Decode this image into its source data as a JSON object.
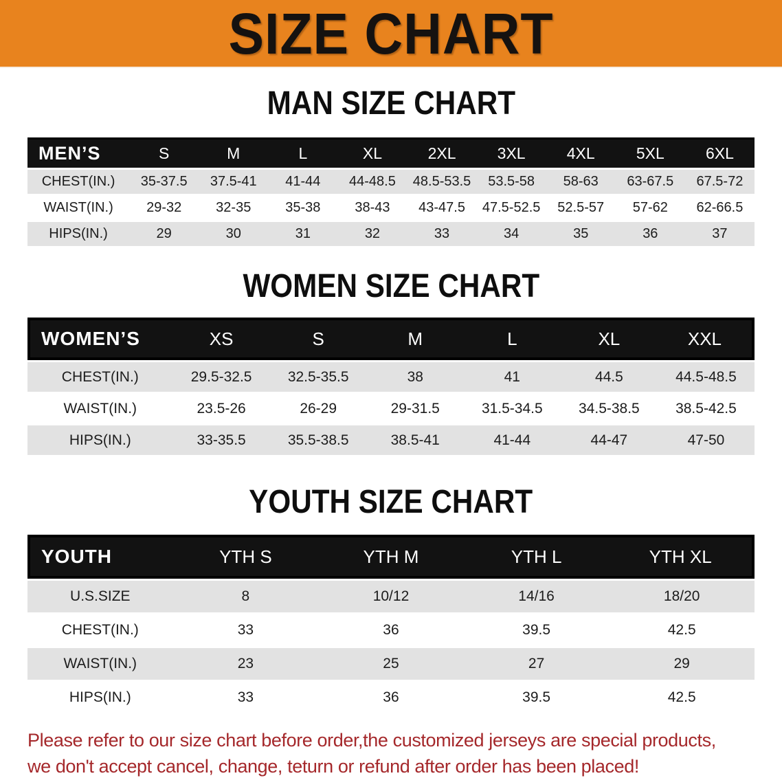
{
  "banner": {
    "title": "SIZE CHART",
    "bg_color": "#e8831e",
    "text_color": "#151210"
  },
  "sections": [
    {
      "id": "mens",
      "title": "MAN SIZE CHART",
      "header_label": "MEN’S",
      "columns": [
        "S",
        "M",
        "L",
        "XL",
        "2XL",
        "3XL",
        "4XL",
        "5XL",
        "6XL"
      ],
      "label_col_width": "14%",
      "rows": [
        {
          "label": "CHEST(IN.)",
          "values": [
            "35-37.5",
            "37.5-41",
            "41-44",
            "44-48.5",
            "48.5-53.5",
            "53.5-58",
            "58-63",
            "63-67.5",
            "67.5-72"
          ]
        },
        {
          "label": "WAIST(IN.)",
          "values": [
            "29-32",
            "32-35",
            "35-38",
            "38-43",
            "43-47.5",
            "47.5-52.5",
            "52.5-57",
            "57-62",
            "62-66.5"
          ]
        },
        {
          "label": "HIPS(IN.)",
          "values": [
            "29",
            "30",
            "31",
            "32",
            "33",
            "34",
            "35",
            "36",
            "37"
          ]
        }
      ]
    },
    {
      "id": "womens",
      "title": "WOMEN SIZE CHART",
      "header_label": "WOMEN’S",
      "columns": [
        "XS",
        "S",
        "M",
        "L",
        "XL",
        "XXL"
      ],
      "label_col_width": "20%",
      "rows": [
        {
          "label": "CHEST(IN.)",
          "values": [
            "29.5-32.5",
            "32.5-35.5",
            "38",
            "41",
            "44.5",
            "44.5-48.5"
          ]
        },
        {
          "label": "WAIST(IN.)",
          "values": [
            "23.5-26",
            "26-29",
            "29-31.5",
            "31.5-34.5",
            "34.5-38.5",
            "38.5-42.5"
          ]
        },
        {
          "label": "HIPS(IN.)",
          "values": [
            "33-35.5",
            "35.5-38.5",
            "38.5-41",
            "41-44",
            "44-47",
            "47-50"
          ]
        }
      ]
    },
    {
      "id": "youth",
      "title": "YOUTH SIZE CHART",
      "header_label": "YOUTH",
      "columns": [
        "YTH S",
        "YTH M",
        "YTH L",
        "YTH XL"
      ],
      "label_col_width": "20%",
      "rows": [
        {
          "label": "U.S.SIZE",
          "values": [
            "8",
            "10/12",
            "14/16",
            "18/20"
          ]
        },
        {
          "label": "CHEST(IN.)",
          "values": [
            "33",
            "36",
            "39.5",
            "42.5"
          ]
        },
        {
          "label": "WAIST(IN.)",
          "values": [
            "23",
            "25",
            "27",
            "29"
          ]
        },
        {
          "label": "HIPS(IN.)",
          "values": [
            "33",
            "36",
            "39.5",
            "42.5"
          ]
        }
      ]
    }
  ],
  "footer": {
    "line1": "Please refer to our size chart before order,the customized jerseys are special products,",
    "line2": "we don't accept cancel, change, teturn or refund after order has been placed!",
    "text_color": "#a5282b"
  },
  "table_style": {
    "header_bg": "#121212",
    "header_text": "#ffffff",
    "stripe_bg": "#e2e2e2"
  }
}
